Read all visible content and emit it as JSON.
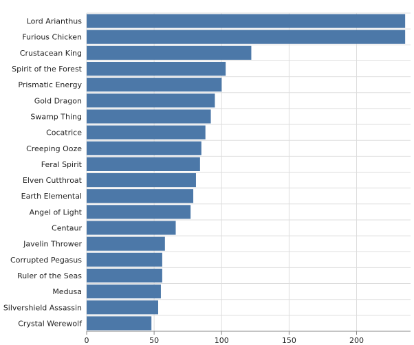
{
  "chart_data": {
    "type": "bar",
    "orientation": "horizontal",
    "categories": [
      "Lord Arianthus",
      "Furious Chicken",
      "Crustacean King",
      "Spirit of the Forest",
      "Prismatic Energy",
      "Gold Dragon",
      "Swamp Thing",
      "Cocatrice",
      "Creeping Ooze",
      "Feral Spirit",
      "Elven Cutthroat",
      "Earth Elemental",
      "Angel of Light",
      "Centaur",
      "Javelin Thrower",
      "Corrupted Pegasus",
      "Ruler of the Seas",
      "Medusa",
      "Silvershield Assassin",
      "Crystal Werewolf"
    ],
    "values": [
      236,
      236,
      122,
      103,
      100,
      95,
      92,
      88,
      85,
      84,
      81,
      79,
      77,
      66,
      58,
      56,
      56,
      55,
      53,
      48
    ],
    "title": "",
    "xlabel": "",
    "ylabel": "",
    "xlim": [
      0,
      240
    ],
    "xticks": [
      0,
      50,
      100,
      150,
      200
    ],
    "grid": true,
    "colors": {
      "bar": "#4c78a8",
      "grid": "#dddddd",
      "axis": "#888888",
      "text": "#222222"
    }
  }
}
